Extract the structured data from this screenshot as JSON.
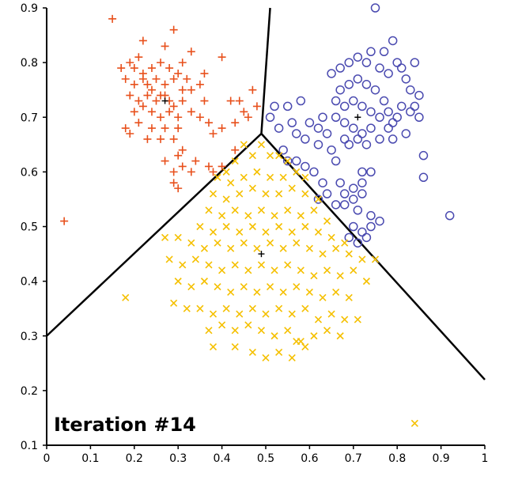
{
  "chart_data": {
    "type": "scatter",
    "title": "",
    "annotation": "Iteration #14",
    "xlabel": "",
    "ylabel": "",
    "xlim": [
      0,
      1
    ],
    "ylim": [
      0.1,
      0.9
    ],
    "x_ticks": [
      "0",
      "0.1",
      "0.2",
      "0.3",
      "0.4",
      "0.5",
      "0.6",
      "0.7",
      "0.8",
      "0.9",
      "1"
    ],
    "y_ticks": [
      "0.1",
      "0.2",
      "0.3",
      "0.4",
      "0.5",
      "0.6",
      "0.7",
      "0.8",
      "0.9"
    ],
    "colors": {
      "red": "#e8501c",
      "yellow": "#f5c000",
      "blue": "#4a4ab0",
      "lines": "#000000"
    },
    "boundaries": [
      {
        "from": [
          0.49,
          0.67
        ],
        "to": [
          0.0,
          0.3
        ]
      },
      {
        "from": [
          0.49,
          0.67
        ],
        "to": [
          0.51,
          0.9
        ]
      },
      {
        "from": [
          0.49,
          0.67
        ],
        "to": [
          1.0,
          0.22
        ]
      }
    ],
    "series": [
      {
        "name": "cluster-red",
        "marker": "plus",
        "color": "#e8501c",
        "centroid": [
          0.27,
          0.73
        ],
        "points": [
          [
            0.15,
            0.88
          ],
          [
            0.22,
            0.84
          ],
          [
            0.27,
            0.83
          ],
          [
            0.29,
            0.86
          ],
          [
            0.31,
            0.8
          ],
          [
            0.33,
            0.82
          ],
          [
            0.17,
            0.79
          ],
          [
            0.19,
            0.8
          ],
          [
            0.21,
            0.81
          ],
          [
            0.24,
            0.79
          ],
          [
            0.26,
            0.8
          ],
          [
            0.28,
            0.79
          ],
          [
            0.3,
            0.78
          ],
          [
            0.32,
            0.77
          ],
          [
            0.18,
            0.77
          ],
          [
            0.2,
            0.76
          ],
          [
            0.22,
            0.78
          ],
          [
            0.23,
            0.76
          ],
          [
            0.25,
            0.77
          ],
          [
            0.27,
            0.76
          ],
          [
            0.29,
            0.77
          ],
          [
            0.31,
            0.75
          ],
          [
            0.33,
            0.75
          ],
          [
            0.19,
            0.74
          ],
          [
            0.21,
            0.73
          ],
          [
            0.23,
            0.74
          ],
          [
            0.25,
            0.73
          ],
          [
            0.27,
            0.74
          ],
          [
            0.29,
            0.72
          ],
          [
            0.31,
            0.73
          ],
          [
            0.2,
            0.71
          ],
          [
            0.22,
            0.72
          ],
          [
            0.24,
            0.71
          ],
          [
            0.26,
            0.7
          ],
          [
            0.28,
            0.71
          ],
          [
            0.3,
            0.7
          ],
          [
            0.33,
            0.71
          ],
          [
            0.18,
            0.68
          ],
          [
            0.21,
            0.69
          ],
          [
            0.24,
            0.68
          ],
          [
            0.27,
            0.68
          ],
          [
            0.3,
            0.68
          ],
          [
            0.19,
            0.67
          ],
          [
            0.23,
            0.66
          ],
          [
            0.26,
            0.66
          ],
          [
            0.29,
            0.66
          ],
          [
            0.35,
            0.7
          ],
          [
            0.37,
            0.69
          ],
          [
            0.38,
            0.67
          ],
          [
            0.4,
            0.68
          ],
          [
            0.42,
            0.73
          ],
          [
            0.44,
            0.73
          ],
          [
            0.45,
            0.71
          ],
          [
            0.43,
            0.69
          ],
          [
            0.46,
            0.7
          ],
          [
            0.35,
            0.76
          ],
          [
            0.36,
            0.78
          ],
          [
            0.31,
            0.64
          ],
          [
            0.34,
            0.62
          ],
          [
            0.33,
            0.6
          ],
          [
            0.3,
            0.63
          ],
          [
            0.31,
            0.61
          ],
          [
            0.29,
            0.6
          ],
          [
            0.29,
            0.58
          ],
          [
            0.3,
            0.57
          ],
          [
            0.27,
            0.62
          ],
          [
            0.37,
            0.61
          ],
          [
            0.38,
            0.6
          ],
          [
            0.4,
            0.61
          ],
          [
            0.43,
            0.64
          ],
          [
            0.48,
            0.72
          ],
          [
            0.4,
            0.81
          ],
          [
            0.36,
            0.73
          ],
          [
            0.47,
            0.75
          ],
          [
            0.04,
            0.51
          ],
          [
            0.22,
            0.77
          ],
          [
            0.26,
            0.74
          ],
          [
            0.28,
            0.73
          ],
          [
            0.24,
            0.75
          ],
          [
            0.2,
            0.79
          ]
        ]
      },
      {
        "name": "cluster-blue",
        "marker": "circle",
        "color": "#4a4ab0",
        "centroid": [
          0.71,
          0.7
        ],
        "points": [
          [
            0.75,
            0.9
          ],
          [
            0.79,
            0.84
          ],
          [
            0.8,
            0.8
          ],
          [
            0.77,
            0.82
          ],
          [
            0.74,
            0.82
          ],
          [
            0.73,
            0.8
          ],
          [
            0.71,
            0.81
          ],
          [
            0.69,
            0.8
          ],
          [
            0.67,
            0.79
          ],
          [
            0.65,
            0.78
          ],
          [
            0.76,
            0.79
          ],
          [
            0.78,
            0.78
          ],
          [
            0.81,
            0.79
          ],
          [
            0.84,
            0.8
          ],
          [
            0.82,
            0.77
          ],
          [
            0.83,
            0.75
          ],
          [
            0.85,
            0.74
          ],
          [
            0.84,
            0.72
          ],
          [
            0.83,
            0.71
          ],
          [
            0.85,
            0.7
          ],
          [
            0.81,
            0.72
          ],
          [
            0.8,
            0.7
          ],
          [
            0.79,
            0.69
          ],
          [
            0.78,
            0.71
          ],
          [
            0.77,
            0.73
          ],
          [
            0.75,
            0.75
          ],
          [
            0.73,
            0.76
          ],
          [
            0.71,
            0.77
          ],
          [
            0.69,
            0.76
          ],
          [
            0.67,
            0.75
          ],
          [
            0.66,
            0.73
          ],
          [
            0.68,
            0.72
          ],
          [
            0.7,
            0.73
          ],
          [
            0.72,
            0.72
          ],
          [
            0.74,
            0.71
          ],
          [
            0.76,
            0.7
          ],
          [
            0.78,
            0.68
          ],
          [
            0.74,
            0.68
          ],
          [
            0.72,
            0.67
          ],
          [
            0.7,
            0.68
          ],
          [
            0.68,
            0.69
          ],
          [
            0.66,
            0.7
          ],
          [
            0.63,
            0.7
          ],
          [
            0.62,
            0.68
          ],
          [
            0.64,
            0.67
          ],
          [
            0.6,
            0.69
          ],
          [
            0.56,
            0.69
          ],
          [
            0.55,
            0.72
          ],
          [
            0.58,
            0.73
          ],
          [
            0.52,
            0.72
          ],
          [
            0.51,
            0.7
          ],
          [
            0.53,
            0.68
          ],
          [
            0.57,
            0.67
          ],
          [
            0.59,
            0.66
          ],
          [
            0.62,
            0.65
          ],
          [
            0.65,
            0.64
          ],
          [
            0.68,
            0.66
          ],
          [
            0.71,
            0.66
          ],
          [
            0.73,
            0.65
          ],
          [
            0.76,
            0.66
          ],
          [
            0.79,
            0.66
          ],
          [
            0.82,
            0.67
          ],
          [
            0.86,
            0.63
          ],
          [
            0.86,
            0.59
          ],
          [
            0.74,
            0.6
          ],
          [
            0.72,
            0.58
          ],
          [
            0.7,
            0.57
          ],
          [
            0.67,
            0.58
          ],
          [
            0.68,
            0.56
          ],
          [
            0.7,
            0.55
          ],
          [
            0.72,
            0.56
          ],
          [
            0.66,
            0.54
          ],
          [
            0.63,
            0.58
          ],
          [
            0.61,
            0.6
          ],
          [
            0.59,
            0.61
          ],
          [
            0.57,
            0.62
          ],
          [
            0.55,
            0.62
          ],
          [
            0.54,
            0.64
          ],
          [
            0.64,
            0.56
          ],
          [
            0.62,
            0.55
          ],
          [
            0.68,
            0.54
          ],
          [
            0.71,
            0.53
          ],
          [
            0.74,
            0.52
          ],
          [
            0.76,
            0.51
          ],
          [
            0.74,
            0.5
          ],
          [
            0.72,
            0.49
          ],
          [
            0.7,
            0.5
          ],
          [
            0.69,
            0.48
          ],
          [
            0.71,
            0.47
          ],
          [
            0.73,
            0.48
          ],
          [
            0.92,
            0.52
          ],
          [
            0.69,
            0.65
          ],
          [
            0.66,
            0.62
          ],
          [
            0.72,
            0.6
          ]
        ]
      },
      {
        "name": "cluster-yellow",
        "marker": "x",
        "color": "#f5c000",
        "centroid": [
          0.49,
          0.45
        ],
        "points": [
          [
            0.45,
            0.65
          ],
          [
            0.47,
            0.63
          ],
          [
            0.49,
            0.65
          ],
          [
            0.51,
            0.63
          ],
          [
            0.53,
            0.63
          ],
          [
            0.55,
            0.62
          ],
          [
            0.43,
            0.62
          ],
          [
            0.41,
            0.6
          ],
          [
            0.39,
            0.59
          ],
          [
            0.42,
            0.58
          ],
          [
            0.45,
            0.59
          ],
          [
            0.48,
            0.6
          ],
          [
            0.51,
            0.59
          ],
          [
            0.54,
            0.59
          ],
          [
            0.57,
            0.6
          ],
          [
            0.59,
            0.59
          ],
          [
            0.38,
            0.56
          ],
          [
            0.41,
            0.55
          ],
          [
            0.44,
            0.56
          ],
          [
            0.47,
            0.57
          ],
          [
            0.5,
            0.56
          ],
          [
            0.53,
            0.56
          ],
          [
            0.56,
            0.57
          ],
          [
            0.59,
            0.56
          ],
          [
            0.62,
            0.55
          ],
          [
            0.37,
            0.53
          ],
          [
            0.4,
            0.52
          ],
          [
            0.43,
            0.53
          ],
          [
            0.46,
            0.52
          ],
          [
            0.49,
            0.53
          ],
          [
            0.52,
            0.52
          ],
          [
            0.55,
            0.53
          ],
          [
            0.58,
            0.52
          ],
          [
            0.61,
            0.53
          ],
          [
            0.64,
            0.51
          ],
          [
            0.35,
            0.5
          ],
          [
            0.38,
            0.49
          ],
          [
            0.41,
            0.5
          ],
          [
            0.44,
            0.49
          ],
          [
            0.47,
            0.5
          ],
          [
            0.5,
            0.49
          ],
          [
            0.53,
            0.5
          ],
          [
            0.56,
            0.49
          ],
          [
            0.59,
            0.5
          ],
          [
            0.62,
            0.49
          ],
          [
            0.65,
            0.48
          ],
          [
            0.68,
            0.47
          ],
          [
            0.27,
            0.48
          ],
          [
            0.3,
            0.48
          ],
          [
            0.33,
            0.47
          ],
          [
            0.36,
            0.46
          ],
          [
            0.39,
            0.47
          ],
          [
            0.42,
            0.46
          ],
          [
            0.45,
            0.47
          ],
          [
            0.48,
            0.46
          ],
          [
            0.51,
            0.47
          ],
          [
            0.54,
            0.46
          ],
          [
            0.57,
            0.47
          ],
          [
            0.6,
            0.46
          ],
          [
            0.63,
            0.45
          ],
          [
            0.66,
            0.46
          ],
          [
            0.69,
            0.45
          ],
          [
            0.72,
            0.44
          ],
          [
            0.75,
            0.44
          ],
          [
            0.28,
            0.44
          ],
          [
            0.31,
            0.43
          ],
          [
            0.34,
            0.44
          ],
          [
            0.37,
            0.43
          ],
          [
            0.4,
            0.42
          ],
          [
            0.43,
            0.43
          ],
          [
            0.46,
            0.42
          ],
          [
            0.49,
            0.43
          ],
          [
            0.52,
            0.42
          ],
          [
            0.55,
            0.43
          ],
          [
            0.58,
            0.42
          ],
          [
            0.61,
            0.41
          ],
          [
            0.64,
            0.42
          ],
          [
            0.67,
            0.41
          ],
          [
            0.7,
            0.42
          ],
          [
            0.73,
            0.4
          ],
          [
            0.3,
            0.4
          ],
          [
            0.33,
            0.39
          ],
          [
            0.36,
            0.4
          ],
          [
            0.39,
            0.39
          ],
          [
            0.42,
            0.38
          ],
          [
            0.45,
            0.39
          ],
          [
            0.48,
            0.38
          ],
          [
            0.51,
            0.39
          ],
          [
            0.54,
            0.38
          ],
          [
            0.57,
            0.39
          ],
          [
            0.6,
            0.38
          ],
          [
            0.63,
            0.37
          ],
          [
            0.66,
            0.38
          ],
          [
            0.69,
            0.37
          ],
          [
            0.29,
            0.36
          ],
          [
            0.32,
            0.35
          ],
          [
            0.35,
            0.35
          ],
          [
            0.38,
            0.34
          ],
          [
            0.41,
            0.35
          ],
          [
            0.44,
            0.34
          ],
          [
            0.47,
            0.35
          ],
          [
            0.5,
            0.34
          ],
          [
            0.53,
            0.35
          ],
          [
            0.56,
            0.34
          ],
          [
            0.59,
            0.35
          ],
          [
            0.62,
            0.33
          ],
          [
            0.65,
            0.34
          ],
          [
            0.68,
            0.33
          ],
          [
            0.71,
            0.33
          ],
          [
            0.37,
            0.31
          ],
          [
            0.4,
            0.32
          ],
          [
            0.43,
            0.31
          ],
          [
            0.46,
            0.32
          ],
          [
            0.49,
            0.31
          ],
          [
            0.52,
            0.3
          ],
          [
            0.55,
            0.31
          ],
          [
            0.58,
            0.29
          ],
          [
            0.61,
            0.3
          ],
          [
            0.64,
            0.31
          ],
          [
            0.67,
            0.3
          ],
          [
            0.38,
            0.28
          ],
          [
            0.43,
            0.28
          ],
          [
            0.47,
            0.27
          ],
          [
            0.5,
            0.26
          ],
          [
            0.53,
            0.27
          ],
          [
            0.56,
            0.26
          ],
          [
            0.59,
            0.28
          ],
          [
            0.18,
            0.37
          ],
          [
            0.84,
            0.14
          ],
          [
            0.57,
            0.29
          ]
        ]
      }
    ]
  }
}
